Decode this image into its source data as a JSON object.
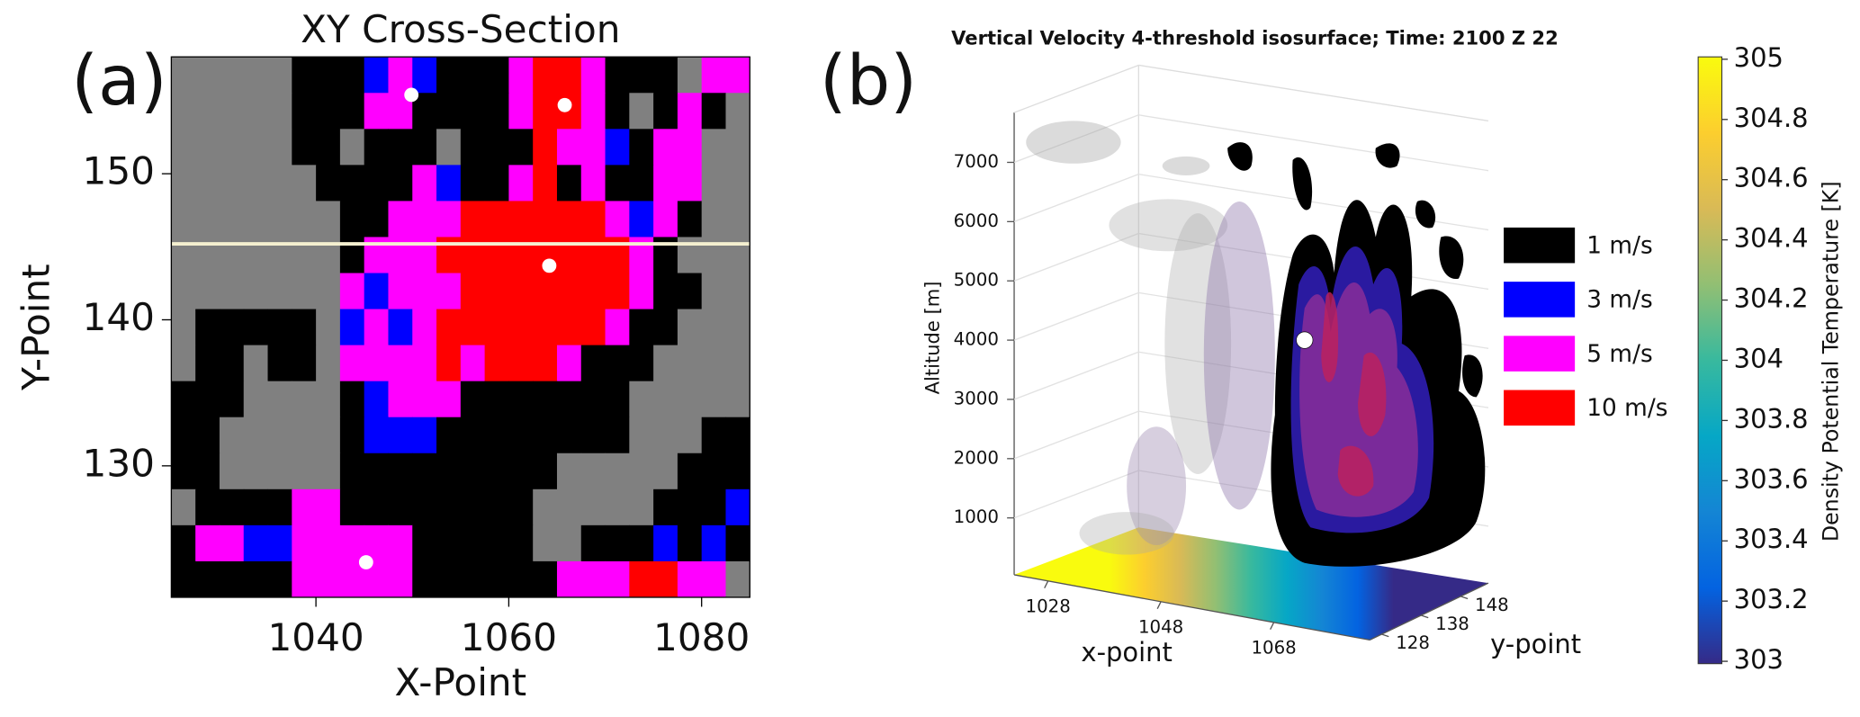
{
  "chart_data": [
    {
      "type": "heatmap",
      "panel_label": "(a)",
      "title": "XY Cross-Section",
      "x_label": "X-Point",
      "y_label": "Y-Point",
      "xlim": [
        1025,
        1085
      ],
      "ylim": [
        121,
        158
      ],
      "xticks": [
        1040,
        1060,
        1080
      ],
      "yticks": [
        130,
        140,
        150
      ],
      "levels": [
        0,
        1,
        3,
        5,
        10
      ],
      "level_colors": [
        "#808080",
        "#000000",
        "#0000ff",
        "#ff00ff",
        "#ff0000"
      ],
      "z": [
        [
          0,
          0,
          0,
          0,
          0,
          1,
          1,
          1,
          3,
          5,
          3,
          1,
          1,
          1,
          5,
          10,
          10,
          5,
          1,
          1,
          1,
          0,
          5,
          5
        ],
        [
          0,
          0,
          0,
          0,
          0,
          1,
          1,
          1,
          5,
          5,
          1,
          1,
          1,
          1,
          5,
          10,
          10,
          5,
          1,
          0,
          1,
          5,
          1,
          0
        ],
        [
          0,
          0,
          0,
          0,
          0,
          1,
          1,
          0,
          1,
          1,
          1,
          0,
          1,
          1,
          1,
          10,
          5,
          5,
          3,
          1,
          5,
          5,
          0,
          0
        ],
        [
          0,
          0,
          0,
          0,
          0,
          0,
          1,
          1,
          1,
          1,
          5,
          3,
          1,
          1,
          5,
          10,
          1,
          5,
          1,
          1,
          5,
          5,
          0,
          0
        ],
        [
          0,
          0,
          0,
          0,
          0,
          0,
          0,
          1,
          1,
          5,
          5,
          5,
          10,
          10,
          10,
          10,
          10,
          10,
          5,
          3,
          5,
          1,
          0,
          0
        ],
        [
          0,
          0,
          0,
          0,
          0,
          0,
          0,
          1,
          5,
          5,
          5,
          10,
          10,
          10,
          10,
          10,
          10,
          10,
          10,
          5,
          1,
          0,
          0,
          0
        ],
        [
          0,
          0,
          0,
          0,
          0,
          0,
          0,
          5,
          3,
          5,
          5,
          5,
          10,
          10,
          10,
          10,
          10,
          10,
          10,
          5,
          1,
          1,
          0,
          0
        ],
        [
          0,
          1,
          1,
          1,
          1,
          1,
          0,
          3,
          5,
          3,
          5,
          10,
          10,
          10,
          10,
          10,
          10,
          10,
          5,
          1,
          1,
          0,
          0,
          0
        ],
        [
          0,
          1,
          1,
          0,
          1,
          1,
          0,
          5,
          5,
          5,
          5,
          10,
          5,
          10,
          10,
          10,
          5,
          1,
          1,
          1,
          0,
          0,
          0,
          0
        ],
        [
          1,
          1,
          1,
          0,
          0,
          0,
          0,
          1,
          3,
          5,
          5,
          5,
          1,
          1,
          1,
          1,
          1,
          1,
          1,
          0,
          0,
          0,
          0,
          0
        ],
        [
          1,
          1,
          0,
          0,
          0,
          0,
          0,
          1,
          3,
          3,
          3,
          1,
          1,
          1,
          1,
          1,
          1,
          1,
          1,
          0,
          0,
          0,
          1,
          1
        ],
        [
          1,
          1,
          0,
          0,
          0,
          0,
          0,
          1,
          1,
          1,
          1,
          1,
          1,
          1,
          1,
          1,
          0,
          0,
          0,
          0,
          0,
          1,
          1,
          1
        ],
        [
          0,
          1,
          1,
          1,
          1,
          5,
          5,
          1,
          1,
          1,
          1,
          1,
          1,
          1,
          1,
          0,
          0,
          0,
          0,
          0,
          1,
          1,
          1,
          3
        ],
        [
          1,
          5,
          5,
          3,
          3,
          5,
          5,
          5,
          5,
          5,
          1,
          1,
          1,
          1,
          1,
          0,
          0,
          1,
          1,
          1,
          3,
          1,
          3,
          1
        ],
        [
          1,
          1,
          1,
          1,
          1,
          5,
          5,
          5,
          5,
          5,
          1,
          1,
          1,
          1,
          1,
          1,
          5,
          5,
          5,
          10,
          10,
          5,
          5,
          0
        ]
      ],
      "points": {
        "x": [
          1049.9,
          1065.8,
          1064.2,
          1045.2
        ],
        "y": [
          155.4,
          154.7,
          143.7,
          123.4
        ],
        "color": "#ffffff"
      },
      "line": {
        "y": 145.2,
        "color": "#f5f0d0"
      }
    },
    {
      "type": "isosurface3d",
      "panel_label": "(b)",
      "title": "Vertical Velocity 4-threshold isosurface; Time: 2100 Z 22",
      "x_label": "x-point",
      "y_label": "y-point",
      "z_label": "Altitude [m]",
      "xlim": [
        1022,
        1085
      ],
      "ylim": [
        125,
        155
      ],
      "zlim": [
        0,
        7800
      ],
      "xticks": [
        1028,
        1048,
        1068
      ],
      "yticks": [
        128,
        138,
        148
      ],
      "zticks": [
        1000,
        2000,
        3000,
        4000,
        5000,
        6000,
        7000
      ],
      "series": [
        {
          "name": "1 m/s",
          "color": "#000000"
        },
        {
          "name": "3 m/s",
          "color": "#0000ff"
        },
        {
          "name": "5 m/s",
          "color": "#ff00ff"
        },
        {
          "name": "10 m/s",
          "color": "#ff0000"
        }
      ],
      "marker": {
        "z": 4000,
        "color": "#ffffff"
      },
      "colorbar": {
        "label": "Density Potential Temperature [K]",
        "lim": [
          303,
          305
        ],
        "ticks": [
          303,
          303.2,
          303.4,
          303.6,
          303.8,
          304,
          304.2,
          304.4,
          304.6,
          304.8,
          305
        ],
        "colors": [
          "#352a87",
          "#0363e1",
          "#1485d4",
          "#06a7c6",
          "#38b99e",
          "#92bf73",
          "#d9ba56",
          "#fcce2e",
          "#f9fb0e"
        ]
      }
    }
  ]
}
